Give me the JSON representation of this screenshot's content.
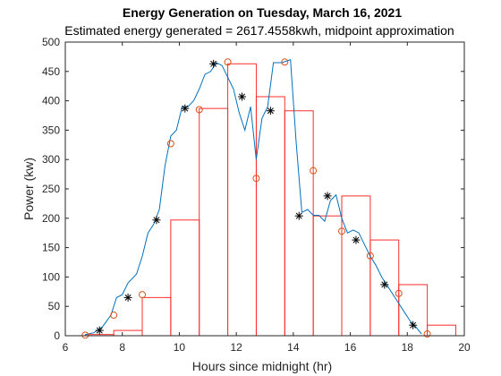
{
  "chart_data": {
    "type": "line",
    "title": "Energy Generation on Tuesday, March 16, 2021",
    "subtitle": "Estimated energy generated = 2617.4558kwh, midpoint approximation",
    "xlabel": "Hours since midnight (hr)",
    "ylabel": "Power (kw)",
    "xlim": [
      6,
      20
    ],
    "ylim": [
      0,
      500
    ],
    "xticks": [
      "6",
      "8",
      "10",
      "12",
      "14",
      "16",
      "18",
      "20"
    ],
    "yticks": [
      "0",
      "50",
      "100",
      "150",
      "200",
      "250",
      "300",
      "350",
      "400",
      "450",
      "500"
    ],
    "grid": false,
    "colors": {
      "power": "#0072BD",
      "rect": "#FF2D2D",
      "circle": "#D95319",
      "star": "#000000"
    },
    "series": [
      {
        "type": "line",
        "x": [
          6.7,
          7.0,
          7.3,
          7.6,
          7.8,
          8.0,
          8.2,
          8.5,
          8.7,
          8.9,
          9.1,
          9.3,
          9.5,
          9.7,
          9.9,
          10.1,
          10.3,
          10.5,
          10.7,
          10.9,
          11.1,
          11.3,
          11.5,
          11.7,
          11.9,
          12.1,
          12.3,
          12.5,
          12.7,
          12.9,
          13.1,
          13.3,
          13.6,
          13.9,
          14.1,
          14.3,
          14.5,
          14.7,
          14.9,
          15.1,
          15.3,
          15.5,
          15.7,
          15.9,
          16.1,
          16.3,
          16.5,
          16.7,
          16.9,
          17.1,
          17.3,
          17.5,
          17.7,
          17.9,
          18.1,
          18.3,
          18.5
        ],
        "y": [
          2,
          5,
          15,
          35,
          65,
          70,
          90,
          105,
          135,
          175,
          190,
          215,
          290,
          340,
          350,
          390,
          390,
          400,
          420,
          445,
          450,
          465,
          460,
          440,
          420,
          380,
          350,
          390,
          300,
          370,
          390,
          465,
          465,
          470,
          330,
          210,
          215,
          205,
          205,
          195,
          230,
          240,
          200,
          175,
          180,
          175,
          155,
          135,
          120,
          100,
          85,
          70,
          55,
          40,
          25,
          15,
          3
        ]
      }
    ],
    "rectangles": {
      "left": [
        6.7,
        7.7,
        8.7,
        9.7,
        10.7,
        11.7,
        12.7,
        13.7,
        14.7,
        15.7,
        16.7,
        17.7,
        18.7
      ],
      "heights": [
        2,
        9,
        65,
        197,
        387,
        463,
        407,
        383,
        204,
        238,
        163,
        87,
        18
      ]
    },
    "circle_markers": {
      "x": [
        6.7,
        7.7,
        8.7,
        9.7,
        10.7,
        11.7,
        12.7,
        13.7,
        14.7,
        15.7,
        16.7,
        17.7,
        18.7
      ],
      "y": [
        1,
        35,
        70,
        327,
        385,
        466,
        268,
        466,
        281,
        178,
        136,
        72,
        3
      ]
    },
    "star_markers": {
      "x": [
        7.2,
        8.2,
        9.2,
        10.2,
        11.2,
        12.2,
        13.2,
        14.2,
        15.2,
        16.2,
        17.2,
        18.2
      ],
      "y": [
        9,
        65,
        197,
        387,
        463,
        407,
        383,
        204,
        238,
        163,
        87,
        18
      ]
    }
  }
}
